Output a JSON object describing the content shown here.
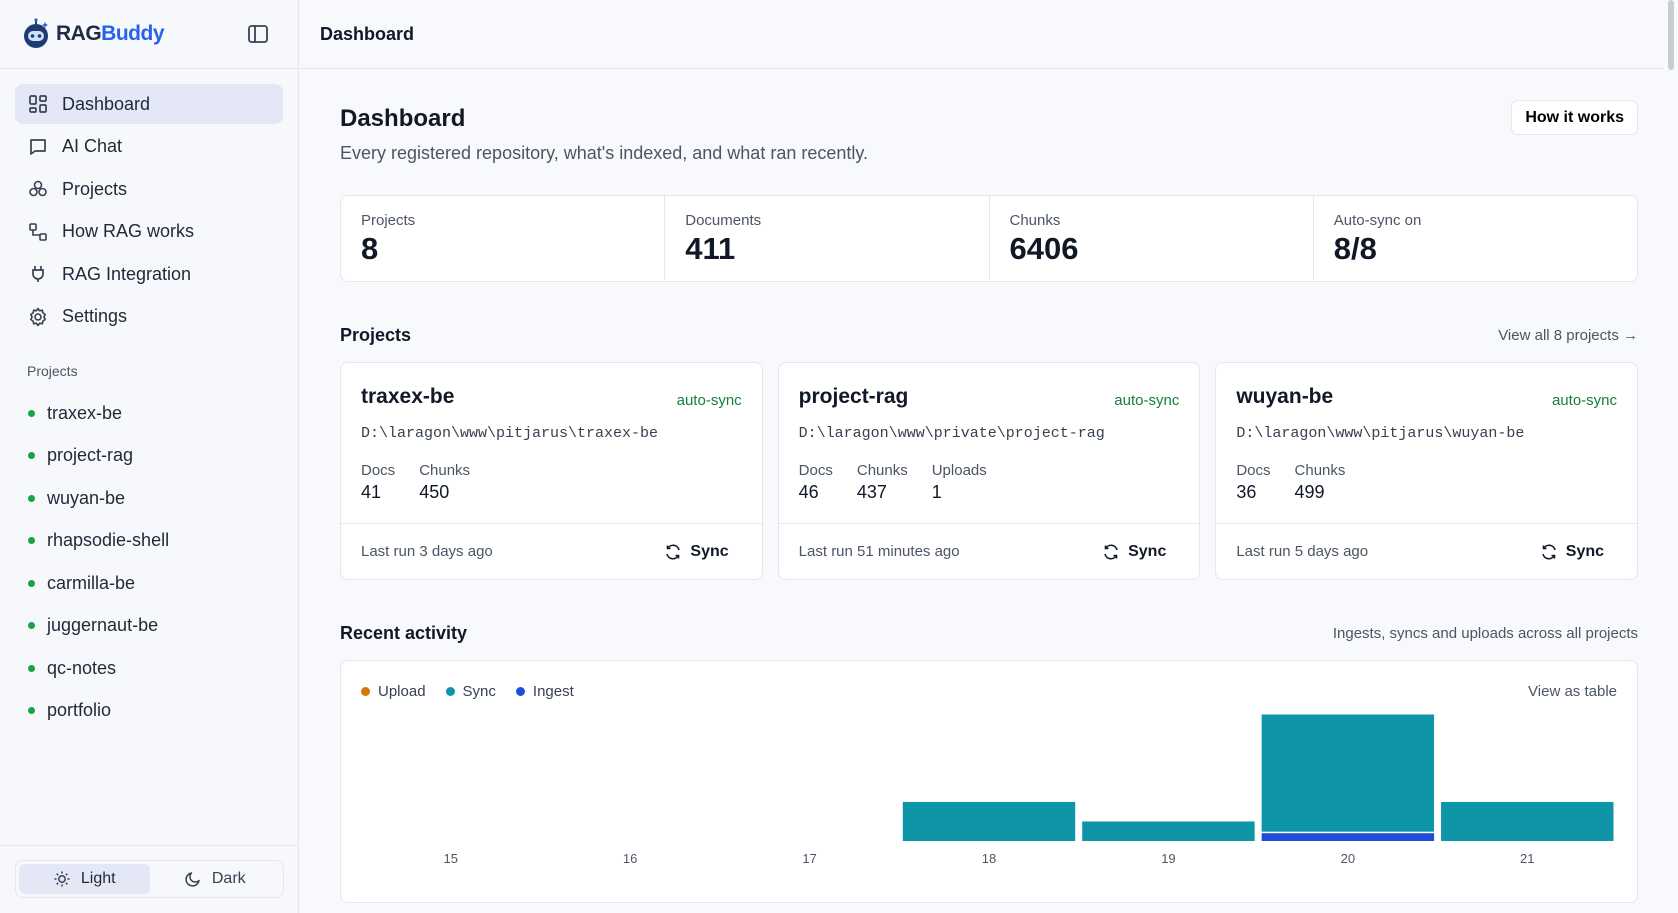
{
  "app": {
    "brand_part1": "RAG",
    "brand_part2": "Buddy"
  },
  "sidebar": {
    "nav": [
      {
        "label": "Dashboard",
        "icon": "dashboard-icon",
        "active": true
      },
      {
        "label": "AI Chat",
        "icon": "chat-icon",
        "active": false
      },
      {
        "label": "Projects",
        "icon": "projects-icon",
        "active": false
      },
      {
        "label": "How RAG works",
        "icon": "workflow-icon",
        "active": false
      },
      {
        "label": "RAG Integration",
        "icon": "plug-icon",
        "active": false
      },
      {
        "label": "Settings",
        "icon": "gear-icon",
        "active": false
      }
    ],
    "projects_heading": "Projects",
    "projects": [
      "traxex-be",
      "project-rag",
      "wuyan-be",
      "rhapsodie-shell",
      "carmilla-be",
      "juggernaut-be",
      "qc-notes",
      "portfolio"
    ],
    "theme": {
      "light": "Light",
      "dark": "Dark",
      "selected": "Light"
    }
  },
  "topbar": {
    "title": "Dashboard"
  },
  "page": {
    "title": "Dashboard",
    "subtitle": "Every registered repository, what's indexed, and what ran recently.",
    "how_button": "How it works"
  },
  "stats": [
    {
      "label": "Projects",
      "value": "8"
    },
    {
      "label": "Documents",
      "value": "411"
    },
    {
      "label": "Chunks",
      "value": "6406"
    },
    {
      "label": "Auto-sync on",
      "value": "8/8"
    }
  ],
  "projects_section": {
    "title": "Projects",
    "view_all": "View all 8 projects →",
    "cards": [
      {
        "name": "traxex-be",
        "badge": "auto-sync",
        "path": "D:\\laragon\\www\\pitjarus\\traxex-be",
        "metrics": [
          {
            "label": "Docs",
            "value": "41"
          },
          {
            "label": "Chunks",
            "value": "450"
          }
        ],
        "last_run": "Last run 3 days ago",
        "sync_label": "Sync"
      },
      {
        "name": "project-rag",
        "badge": "auto-sync",
        "path": "D:\\laragon\\www\\private\\project-rag",
        "metrics": [
          {
            "label": "Docs",
            "value": "46"
          },
          {
            "label": "Chunks",
            "value": "437"
          },
          {
            "label": "Uploads",
            "value": "1"
          }
        ],
        "last_run": "Last run 51 minutes ago",
        "sync_label": "Sync"
      },
      {
        "name": "wuyan-be",
        "badge": "auto-sync",
        "path": "D:\\laragon\\www\\pitjarus\\wuyan-be",
        "metrics": [
          {
            "label": "Docs",
            "value": "36"
          },
          {
            "label": "Chunks",
            "value": "499"
          }
        ],
        "last_run": "Last run 5 days ago",
        "sync_label": "Sync"
      }
    ]
  },
  "activity": {
    "title": "Recent activity",
    "subtitle": "Ingests, syncs and uploads across all projects",
    "view_table": "View as table",
    "legend": [
      {
        "name": "Upload",
        "color": "#d97706"
      },
      {
        "name": "Sync",
        "color": "#0e96a8"
      },
      {
        "name": "Ingest",
        "color": "#1d4ed8"
      }
    ]
  },
  "chart_data": {
    "type": "bar",
    "stacked": true,
    "categories": [
      "15",
      "16",
      "17",
      "18",
      "19",
      "20",
      "21"
    ],
    "series": [
      {
        "name": "Upload",
        "color": "#d97706",
        "values": [
          0,
          0,
          0,
          0,
          0,
          0,
          0
        ]
      },
      {
        "name": "Sync",
        "color": "#0e96a8",
        "values": [
          0,
          0,
          0,
          2,
          1,
          6,
          2
        ]
      },
      {
        "name": "Ingest",
        "color": "#1d4ed8",
        "values": [
          0,
          0,
          0,
          0,
          0,
          0.4,
          0
        ]
      }
    ],
    "grid": false,
    "legend_position": "top-left"
  }
}
